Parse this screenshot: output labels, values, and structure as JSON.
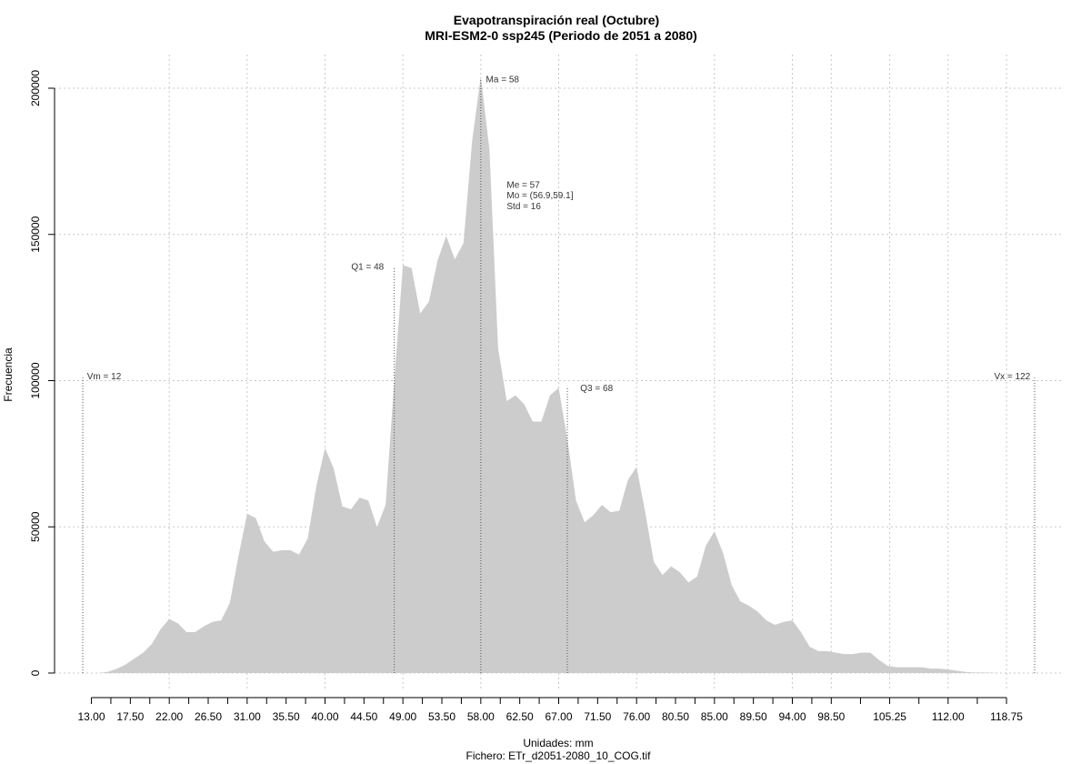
{
  "chart_data": {
    "type": "area",
    "title": "Evapotranspiración real (Octubre)",
    "subtitle": "MRI-ESM2-0 ssp245 (Periodo de 2051 a 2080)",
    "xlabel": "Unidades: mm",
    "caption": "Fichero: ETr_d2051-2080_10_COG.tif",
    "ylabel": "Frecuencia",
    "xlim": [
      12,
      122
    ],
    "ylim": [
      0,
      200000
    ],
    "grid": true,
    "x_ticks": [
      "13.00",
      "17.50",
      "22.00",
      "26.50",
      "31.00",
      "35.50",
      "40.00",
      "44.50",
      "49.00",
      "53.50",
      "58.00",
      "62.50",
      "67.00",
      "71.50",
      "76.00",
      "80.50",
      "85.00",
      "89.50",
      "94.00",
      "98.50",
      "105.25",
      "112.00",
      "118.75"
    ],
    "x_grid": [
      22,
      31,
      40,
      49,
      58,
      67,
      76,
      85,
      94,
      98.5,
      105.25,
      112,
      118.75
    ],
    "y_ticks": [
      0,
      50000,
      100000,
      150000,
      200000
    ],
    "x": [
      13,
      14,
      15,
      16,
      17,
      18,
      19,
      20,
      21,
      22,
      23,
      24,
      25,
      26,
      27,
      28,
      29,
      30,
      31,
      32,
      33,
      34,
      35,
      36,
      37,
      38,
      39,
      40,
      41,
      42,
      43,
      44,
      45,
      46,
      47,
      48,
      49,
      50,
      51,
      52,
      53,
      54,
      55,
      56,
      57,
      58,
      59,
      60,
      61,
      62,
      63,
      64,
      65,
      66,
      67,
      68,
      69,
      70,
      71,
      72,
      73,
      74,
      75,
      76,
      77,
      78,
      79,
      80,
      81,
      82,
      83,
      84,
      85,
      86,
      87,
      88,
      89,
      90,
      91,
      92,
      93,
      94,
      95,
      96,
      97,
      98,
      99,
      100,
      101,
      102,
      103,
      104,
      105,
      106,
      107,
      108,
      109,
      110,
      111,
      112,
      113,
      114,
      115,
      116,
      117,
      118,
      119,
      120
    ],
    "values": [
      0,
      0,
      500,
      1500,
      3000,
      5000,
      7000,
      10000,
      15000,
      18500,
      17000,
      14000,
      14000,
      16000,
      17500,
      18000,
      24000,
      40000,
      54500,
      53000,
      45000,
      41500,
      42000,
      42000,
      40500,
      46000,
      64000,
      77000,
      70000,
      57000,
      56000,
      60000,
      59000,
      50000,
      57500,
      100000,
      139500,
      138500,
      123000,
      127000,
      141000,
      149500,
      141500,
      147000,
      182000,
      204000,
      179000,
      111000,
      93000,
      95000,
      92000,
      86000,
      86000,
      95000,
      97500,
      80000,
      59000,
      51500,
      54000,
      57500,
      55000,
      55500,
      66000,
      70500,
      55000,
      38000,
      33500,
      36500,
      34500,
      31000,
      33000,
      43500,
      48500,
      41000,
      30000,
      24500,
      23000,
      21000,
      18000,
      16500,
      17500,
      18000,
      14000,
      9000,
      7500,
      7500,
      7000,
      6500,
      6500,
      7000,
      7000,
      4500,
      2500,
      2000,
      2000,
      2000,
      2000,
      1500,
      1500,
      1200,
      800,
      400,
      200,
      200,
      100,
      0,
      0,
      0
    ],
    "vlines": [
      {
        "x": 12,
        "y": 101000
      },
      {
        "x": 48,
        "y": 139000
      },
      {
        "x": 58,
        "y": 203000
      },
      {
        "x": 68,
        "y": 98000
      },
      {
        "x": 122,
        "y": 101000
      }
    ],
    "annotations": [
      {
        "text": "Vm = 12",
        "x": 12.5,
        "y": 100500,
        "anchor": "start"
      },
      {
        "text": "Q1 = 48",
        "x": 46.8,
        "y": 138000,
        "anchor": "end"
      },
      {
        "text": "Ma = 58",
        "x": 58.6,
        "y": 202000,
        "anchor": "start"
      },
      {
        "text": "Me = 57",
        "x": 61.0,
        "y": 166000,
        "anchor": "start"
      },
      {
        "text": "Mo = (56.9,59.1]",
        "x": 61.0,
        "y": 162300,
        "anchor": "start"
      },
      {
        "text": "Std = 16",
        "x": 61.0,
        "y": 158600,
        "anchor": "start"
      },
      {
        "text": "Q3 = 68",
        "x": 69.5,
        "y": 96500,
        "anchor": "start"
      },
      {
        "text": "Vx = 122",
        "x": 121.5,
        "y": 100500,
        "anchor": "end"
      }
    ],
    "colors": {
      "area": "#cccccc",
      "grid": "#c8c8c8",
      "vline": "#555555"
    }
  }
}
